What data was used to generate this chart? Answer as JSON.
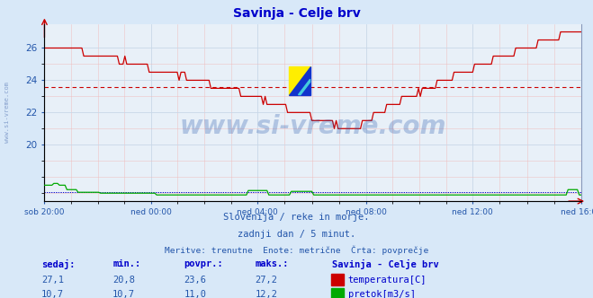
{
  "title": "Savinja - Celje brv",
  "title_color": "#0000cc",
  "bg_color": "#d8e8f8",
  "plot_bg_color": "#e8f0f8",
  "grid_color_major": "#c8d8e8",
  "grid_color_minor": "#f0b8b8",
  "xlabel_ticks": [
    "sob 20:00",
    "ned 00:00",
    "ned 04:00",
    "ned 08:00",
    "ned 12:00",
    "ned 16:00"
  ],
  "yticks_temp": [
    20,
    22,
    24,
    26
  ],
  "temp_ylim": [
    16.5,
    27.5
  ],
  "temp_avg": 23.6,
  "temp_color": "#cc0000",
  "flow_color": "#00aa00",
  "flow_avg_color": "#0000cc",
  "watermark": "www.si-vreme.com",
  "watermark_color": "#2255aa",
  "watermark_alpha": 0.28,
  "side_label": "www.si-vreme.com",
  "side_label_color": "#4466aa",
  "text1": "Slovenija / reke in morje.",
  "text2": "zadnji dan / 5 minut.",
  "text3": "Meritve: trenutne  Enote: metrične  Črta: povprečje",
  "text_color": "#2255aa",
  "legend_title": "Savinja - Celje brv",
  "legend_items": [
    "temperatura[C]",
    "pretok[m3/s]"
  ],
  "legend_colors": [
    "#cc0000",
    "#00aa00"
  ],
  "stat_headers": [
    "sedaj:",
    "min.:",
    "povpr.:",
    "maks.:"
  ],
  "stat_temp": [
    "27,1",
    "20,8",
    "23,6",
    "27,2"
  ],
  "stat_flow": [
    "10,7",
    "10,7",
    "11,0",
    "12,2"
  ],
  "header_color": "#0000cc",
  "stat_val_color": "#2255aa"
}
